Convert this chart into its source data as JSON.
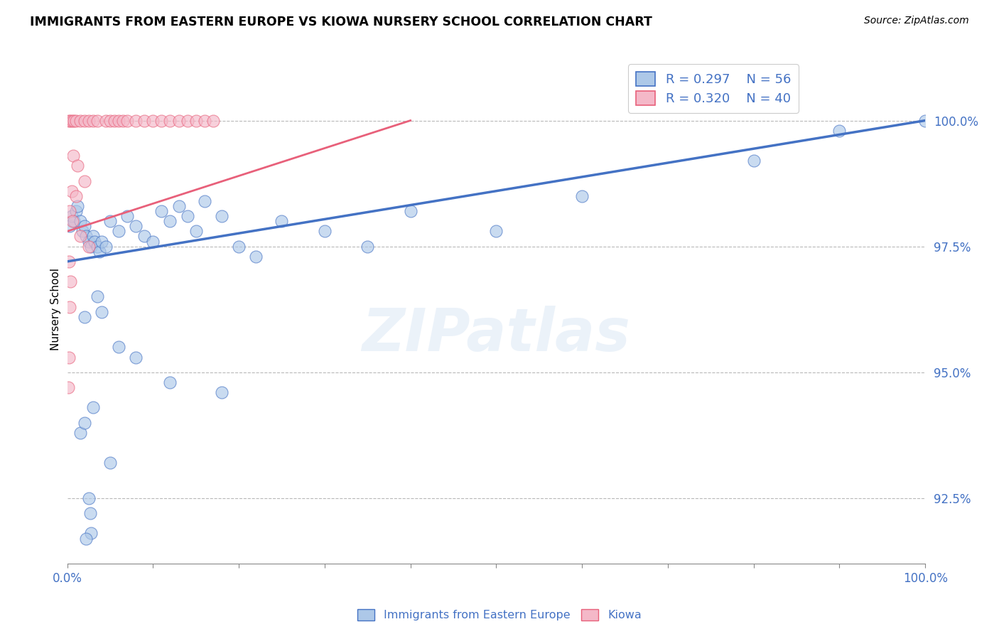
{
  "title": "IMMIGRANTS FROM EASTERN EUROPE VS KIOWA NURSERY SCHOOL CORRELATION CHART",
  "source": "Source: ZipAtlas.com",
  "ylabel": "Nursery School",
  "watermark": "ZIPatlas",
  "legend": {
    "blue_label": "Immigrants from Eastern Europe",
    "pink_label": "Kiowa",
    "blue_R": "R = 0.297",
    "pink_R": "R = 0.320",
    "blue_N": "N = 56",
    "pink_N": "N = 40"
  },
  "yticks": [
    92.5,
    95.0,
    97.5,
    100.0
  ],
  "ytick_labels": [
    "92.5%",
    "95.0%",
    "97.5%",
    "100.0%"
  ],
  "xlim": [
    0,
    100
  ],
  "ylim": [
    91.2,
    101.3
  ],
  "blue_color": "#adc8e8",
  "blue_line_color": "#4472c4",
  "pink_color": "#f4b8c8",
  "pink_line_color": "#e8607a",
  "blue_scatter": [
    [
      0.3,
      97.9
    ],
    [
      0.5,
      98.1
    ],
    [
      0.8,
      98.0
    ],
    [
      1.0,
      98.2
    ],
    [
      1.2,
      98.3
    ],
    [
      1.5,
      98.0
    ],
    [
      1.8,
      97.8
    ],
    [
      2.0,
      97.9
    ],
    [
      2.2,
      97.7
    ],
    [
      2.5,
      97.6
    ],
    [
      2.8,
      97.5
    ],
    [
      3.0,
      97.7
    ],
    [
      3.2,
      97.6
    ],
    [
      3.5,
      97.5
    ],
    [
      3.8,
      97.4
    ],
    [
      4.0,
      97.6
    ],
    [
      4.5,
      97.5
    ],
    [
      5.0,
      98.0
    ],
    [
      6.0,
      97.8
    ],
    [
      7.0,
      98.1
    ],
    [
      8.0,
      97.9
    ],
    [
      9.0,
      97.7
    ],
    [
      10.0,
      97.6
    ],
    [
      11.0,
      98.2
    ],
    [
      12.0,
      98.0
    ],
    [
      13.0,
      98.3
    ],
    [
      14.0,
      98.1
    ],
    [
      15.0,
      97.8
    ],
    [
      16.0,
      98.4
    ],
    [
      18.0,
      98.1
    ],
    [
      20.0,
      97.5
    ],
    [
      22.0,
      97.3
    ],
    [
      25.0,
      98.0
    ],
    [
      30.0,
      97.8
    ],
    [
      35.0,
      97.5
    ],
    [
      40.0,
      98.2
    ],
    [
      50.0,
      97.8
    ],
    [
      60.0,
      98.5
    ],
    [
      80.0,
      99.2
    ],
    [
      90.0,
      99.8
    ],
    [
      1.5,
      93.8
    ],
    [
      2.0,
      94.0
    ],
    [
      3.0,
      94.3
    ],
    [
      2.8,
      91.8
    ],
    [
      2.2,
      91.7
    ],
    [
      2.5,
      92.5
    ],
    [
      2.7,
      92.2
    ],
    [
      5.0,
      93.2
    ],
    [
      6.0,
      95.5
    ],
    [
      8.0,
      95.3
    ],
    [
      12.0,
      94.8
    ],
    [
      18.0,
      94.6
    ],
    [
      3.5,
      96.5
    ],
    [
      4.0,
      96.2
    ],
    [
      2.0,
      96.1
    ],
    [
      100.0,
      100.0
    ]
  ],
  "pink_scatter": [
    [
      0.2,
      100.0
    ],
    [
      0.4,
      100.0
    ],
    [
      0.6,
      100.0
    ],
    [
      0.8,
      100.0
    ],
    [
      1.0,
      100.0
    ],
    [
      1.5,
      100.0
    ],
    [
      2.0,
      100.0
    ],
    [
      2.5,
      100.0
    ],
    [
      3.0,
      100.0
    ],
    [
      3.5,
      100.0
    ],
    [
      4.5,
      100.0
    ],
    [
      5.0,
      100.0
    ],
    [
      5.5,
      100.0
    ],
    [
      6.0,
      100.0
    ],
    [
      6.5,
      100.0
    ],
    [
      7.0,
      100.0
    ],
    [
      8.0,
      100.0
    ],
    [
      9.0,
      100.0
    ],
    [
      10.0,
      100.0
    ],
    [
      11.0,
      100.0
    ],
    [
      12.0,
      100.0
    ],
    [
      13.0,
      100.0
    ],
    [
      14.0,
      100.0
    ],
    [
      15.0,
      100.0
    ],
    [
      16.0,
      100.0
    ],
    [
      17.0,
      100.0
    ],
    [
      0.7,
      99.3
    ],
    [
      1.2,
      99.1
    ],
    [
      2.0,
      98.8
    ],
    [
      0.5,
      98.6
    ],
    [
      1.0,
      98.5
    ],
    [
      0.3,
      98.2
    ],
    [
      0.6,
      98.0
    ],
    [
      1.5,
      97.7
    ],
    [
      2.5,
      97.5
    ],
    [
      0.2,
      97.2
    ],
    [
      0.4,
      96.8
    ],
    [
      0.3,
      96.3
    ],
    [
      0.2,
      95.3
    ],
    [
      0.1,
      94.7
    ]
  ],
  "blue_trend_x": [
    0,
    100
  ],
  "blue_trend_y": [
    97.2,
    100.0
  ],
  "pink_trend_x": [
    0,
    40
  ],
  "pink_trend_y": [
    97.8,
    100.0
  ]
}
